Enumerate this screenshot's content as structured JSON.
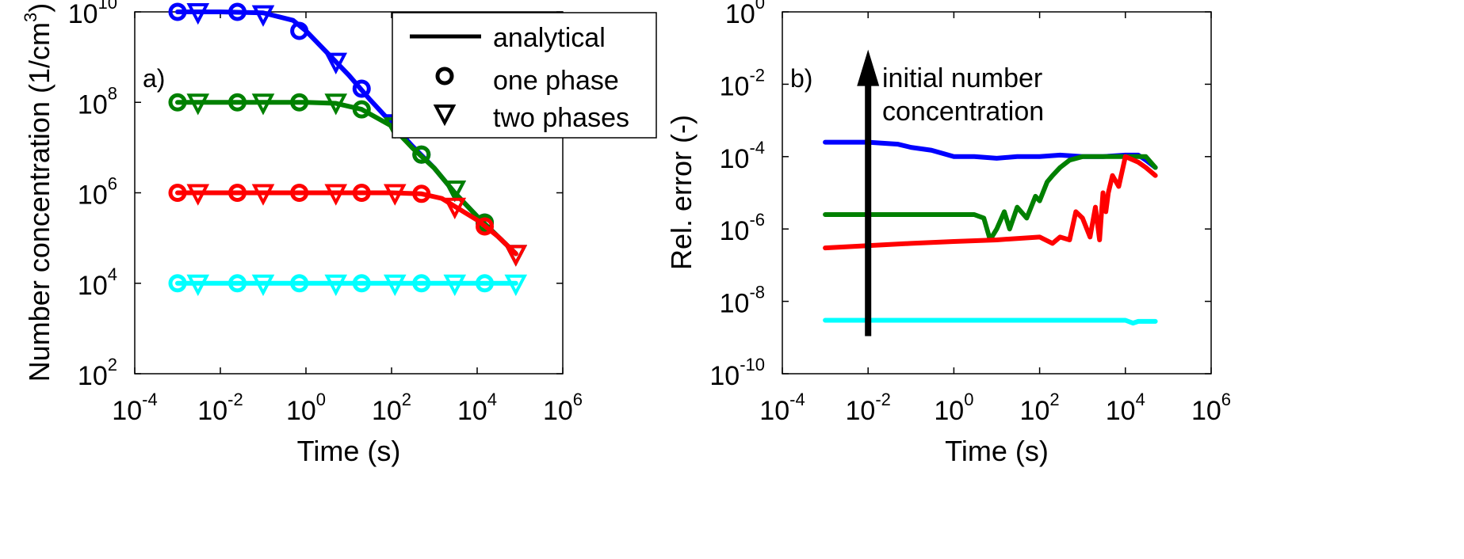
{
  "chart_data": [
    {
      "type": "line",
      "panel_label": "a)",
      "xlabel": "Time (s)",
      "ylabel": "Number concentration (1/cm",
      "ylabel_sup": "3",
      "ylabel_close": ")",
      "xscale": "log",
      "yscale": "log",
      "xlim": [
        0.0001,
        1000000
      ],
      "ylim": [
        100,
        10000000000
      ],
      "x_ticks": [
        {
          "base": "10",
          "exp": "-4"
        },
        {
          "base": "10",
          "exp": "-2"
        },
        {
          "base": "10",
          "exp": "0"
        },
        {
          "base": "10",
          "exp": "2"
        },
        {
          "base": "10",
          "exp": "4"
        },
        {
          "base": "10",
          "exp": "6"
        }
      ],
      "y_ticks": [
        {
          "base": "10",
          "exp": "2"
        },
        {
          "base": "10",
          "exp": "4"
        },
        {
          "base": "10",
          "exp": "6"
        },
        {
          "base": "10",
          "exp": "8"
        },
        {
          "base": "10",
          "exp": "10"
        }
      ],
      "grid": false,
      "legend": {
        "position": "top-center",
        "entries": [
          {
            "label": "analytical",
            "marker": "line"
          },
          {
            "label": "one phase",
            "marker": "circle"
          },
          {
            "label": "two phases",
            "marker": "triangle-down"
          }
        ]
      },
      "series": [
        {
          "color": "#0000ff",
          "analytical": {
            "x": [
              0.001,
              0.01,
              0.1,
              0.5,
              1,
              3,
              10,
              30,
              100,
              300,
              1000,
              3000,
              10000,
              30000,
              80000
            ],
            "y": [
              10000000000,
              10000000000,
              9500000000,
              6500000000,
              3800000000,
              1300000000,
              400000000,
              120000000,
              35000000,
              11000000,
              3500000,
              1000000,
              300000,
              110000,
              45000
            ]
          },
          "one_phase": {
            "x": [
              0.001,
              0.025,
              0.7,
              20,
              500,
              15000
            ],
            "y": [
              10000000000,
              10000000000,
              3800000000,
              200000000,
              7000000,
              220000
            ]
          },
          "two_phases": {
            "x": [
              0.003,
              0.1,
              5,
              120,
              3000,
              80000
            ],
            "y": [
              10000000000,
              9000000000,
              800000000,
              35000000,
              1200000,
              45000
            ]
          }
        },
        {
          "color": "#008000",
          "analytical": {
            "x": [
              0.001,
              0.01,
              0.1,
              1,
              5,
              20,
              100,
              300,
              1000,
              3000,
              10000,
              30000,
              80000
            ],
            "y": [
              100000000,
              100000000,
              100000000,
              100000000,
              95000000,
              70000000,
              30000000,
              10000000,
              3500000,
              1000000,
              300000,
              110000,
              45000
            ]
          },
          "one_phase": {
            "x": [
              0.001,
              0.025,
              0.7,
              20,
              500,
              15000
            ],
            "y": [
              100000000,
              100000000,
              100000000,
              70000000,
              7000000,
              220000
            ]
          },
          "two_phases": {
            "x": [
              0.003,
              0.1,
              5,
              120,
              3000,
              80000
            ],
            "y": [
              100000000,
              100000000,
              100000000,
              30000000,
              1200000,
              45000
            ]
          }
        },
        {
          "color": "#ff0000",
          "analytical": {
            "x": [
              0.001,
              0.01,
              0.1,
              1,
              10,
              100,
              500,
              1500,
              3000,
              10000,
              30000,
              80000
            ],
            "y": [
              1000000,
              1000000,
              1000000,
              1000000,
              1000000,
              1000000,
              950000,
              750000,
              500000,
              250000,
              110000,
              45000
            ]
          },
          "one_phase": {
            "x": [
              0.001,
              0.025,
              0.7,
              20,
              500,
              15000
            ],
            "y": [
              1000000,
              1000000,
              1000000,
              1000000,
              950000,
              180000
            ]
          },
          "two_phases": {
            "x": [
              0.003,
              0.1,
              5,
              120,
              3000,
              80000
            ],
            "y": [
              1000000,
              1000000,
              1000000,
              1000000,
              500000,
              45000
            ]
          }
        },
        {
          "color": "#00ffff",
          "analytical": {
            "x": [
              0.001,
              80000
            ],
            "y": [
              10000,
              10000
            ]
          },
          "one_phase": {
            "x": [
              0.001,
              0.025,
              0.7,
              20,
              500,
              15000
            ],
            "y": [
              10000,
              10000,
              10000,
              10000,
              10000,
              10000
            ]
          },
          "two_phases": {
            "x": [
              0.003,
              0.1,
              5,
              120,
              3000,
              80000
            ],
            "y": [
              10000,
              10000,
              10000,
              10000,
              10000,
              10000
            ]
          }
        }
      ]
    },
    {
      "type": "line",
      "panel_label": "b)",
      "xlabel": "Time (s)",
      "ylabel": "Rel. error (-)",
      "xscale": "log",
      "yscale": "log",
      "xlim": [
        0.0001,
        1000000
      ],
      "ylim": [
        1e-10,
        1
      ],
      "x_ticks": [
        {
          "base": "10",
          "exp": "-4"
        },
        {
          "base": "10",
          "exp": "-2"
        },
        {
          "base": "10",
          "exp": "0"
        },
        {
          "base": "10",
          "exp": "2"
        },
        {
          "base": "10",
          "exp": "4"
        },
        {
          "base": "10",
          "exp": "6"
        }
      ],
      "y_ticks": [
        {
          "base": "10",
          "exp": "-10"
        },
        {
          "base": "10",
          "exp": "-8"
        },
        {
          "base": "10",
          "exp": "-6"
        },
        {
          "base": "10",
          "exp": "-4"
        },
        {
          "base": "10",
          "exp": "-2"
        },
        {
          "base": "10",
          "exp": "0"
        }
      ],
      "grid": false,
      "annotation": {
        "lines": [
          "initial number",
          "concentration"
        ],
        "arrow_x": 0.01,
        "arrow_from_y": 3e-09,
        "arrow_to_y": 0.03
      },
      "series": [
        {
          "color": "#0000ff",
          "x": [
            0.001,
            0.01,
            0.05,
            0.1,
            0.3,
            1,
            3,
            10,
            30,
            100,
            300,
            1000,
            3000,
            10000,
            20000,
            30000,
            50000
          ],
          "y": [
            0.00025,
            0.00025,
            0.00022,
            0.00018,
            0.00015,
            0.0001,
            0.0001,
            9e-05,
            0.0001,
            0.0001,
            0.00011,
            0.0001,
            0.0001,
            0.00011,
            0.00011,
            8e-05,
            5e-05
          ]
        },
        {
          "color": "#008000",
          "x": [
            0.001,
            0.01,
            0.1,
            1,
            3,
            5,
            7,
            10,
            15,
            20,
            30,
            50,
            80,
            100,
            150,
            200,
            300,
            500,
            1000,
            3000,
            10000,
            30000,
            50000
          ],
          "y": [
            2.5e-06,
            2.5e-06,
            2.5e-06,
            2.5e-06,
            2.5e-06,
            2e-06,
            5e-07,
            1e-06,
            3e-06,
            1e-06,
            4e-06,
            2e-06,
            8e-06,
            6e-06,
            2e-05,
            3e-05,
            5e-05,
            8e-05,
            0.0001,
            0.0001,
            0.0001,
            0.0001,
            5e-05
          ]
        },
        {
          "color": "#ff0000",
          "x": [
            0.001,
            0.1,
            1,
            10,
            100,
            200,
            300,
            500,
            700,
            1000,
            1500,
            2000,
            2500,
            3000,
            3500,
            4000,
            5000,
            7000,
            10000,
            20000,
            30000,
            50000
          ],
          "y": [
            3e-07,
            4e-07,
            4.5e-07,
            5e-07,
            6e-07,
            4e-07,
            6e-07,
            5e-07,
            3e-06,
            2e-06,
            6e-07,
            4e-06,
            5e-07,
            1e-05,
            3e-06,
            1e-05,
            3e-05,
            1.5e-05,
            0.0001,
            7e-05,
            5e-05,
            3e-05
          ]
        },
        {
          "color": "#00ffff",
          "x": [
            0.001,
            0.1,
            10,
            1000,
            10000,
            15000,
            20000,
            50000
          ],
          "y": [
            3e-09,
            3e-09,
            3e-09,
            3e-09,
            3e-09,
            2.5e-09,
            2.8e-09,
            2.8e-09
          ]
        }
      ]
    }
  ]
}
